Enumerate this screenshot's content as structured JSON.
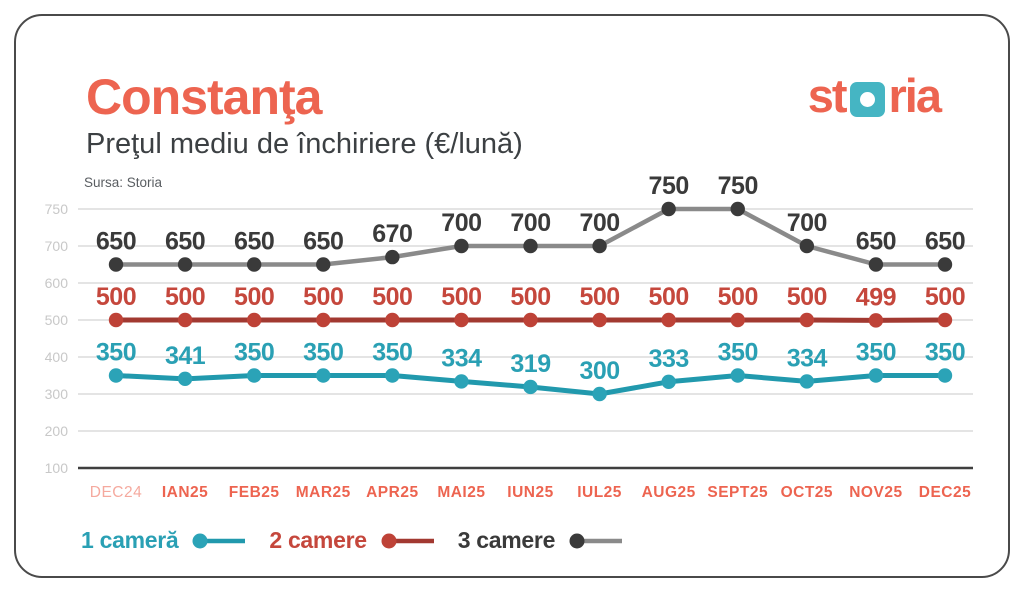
{
  "header": {
    "title": "Constanţa",
    "subtitle": "Preţul mediu de închiriere (€/lună)",
    "source": "Sursa: Storia"
  },
  "logo": {
    "part1": "st",
    "part2": "ria"
  },
  "colors": {
    "brand_coral": "#ED6450",
    "brand_teal": "#45B5C3",
    "axis_line": "#3F3F3F",
    "gridline": "#DBDBDB",
    "y_tick_text": "#C8C8C8",
    "x_tick_text": "#ED6450"
  },
  "chart_data": {
    "type": "line",
    "title": "Preţul mediu de închiriere (€/lună)",
    "xlabel": "",
    "ylabel": "€/lună",
    "grid": true,
    "legend_position": "bottom",
    "y_ticks": [
      750,
      700,
      600,
      500,
      400,
      300,
      200,
      100
    ],
    "categories": [
      "DEC24",
      "IAN25",
      "FEB25",
      "MAR25",
      "APR25",
      "MAI25",
      "IUN25",
      "IUL25",
      "AUG25",
      "SEPT25",
      "OCT25",
      "NOV25",
      "DEC25"
    ],
    "x_labels_muted": [
      "DEC24"
    ],
    "series": [
      {
        "name": "1 cameră",
        "values": [
          350,
          341,
          350,
          350,
          350,
          334,
          319,
          300,
          333,
          350,
          334,
          350,
          350
        ],
        "line_color": "#2199AD",
        "point_color": "#2BA3B7",
        "label_color": "#2AA0B4"
      },
      {
        "name": "2 camere",
        "values": [
          500,
          500,
          500,
          500,
          500,
          500,
          500,
          500,
          500,
          500,
          500,
          499,
          500
        ],
        "line_color": "#A23931",
        "point_color": "#BE4237",
        "label_color": "#C5473C"
      },
      {
        "name": "3 camere",
        "values": [
          650,
          650,
          650,
          650,
          670,
          700,
          700,
          700,
          750,
          750,
          700,
          650,
          650
        ],
        "line_color": "#8A8A8A",
        "point_color": "#3A3A3A",
        "label_color": "#3A3A3A"
      }
    ]
  }
}
